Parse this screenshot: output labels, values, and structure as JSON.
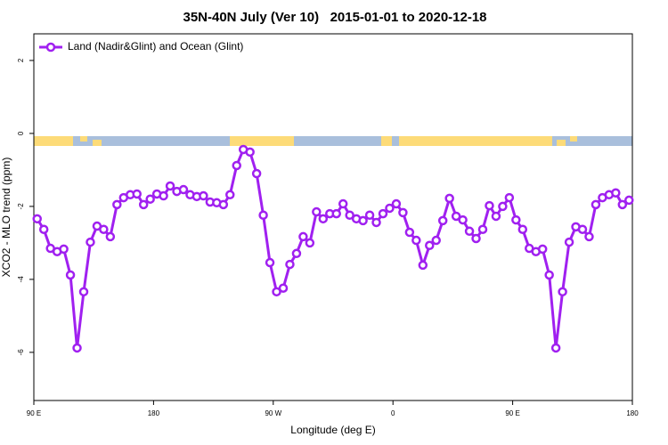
{
  "chart_data": {
    "type": "line",
    "title": "35N-40N July (Ver 10)   2015-01-01 to 2020-12-18",
    "xlabel": "Longitude (deg E)",
    "ylabel": "XCO2 - MLO trend (ppm)",
    "x": [
      92.5,
      97.5,
      102.5,
      107.5,
      112.5,
      117.5,
      122.5,
      127.5,
      132.5,
      137.5,
      142.5,
      147.5,
      152.5,
      157.5,
      162.5,
      167.5,
      172.5,
      177.5,
      182.5,
      187.5,
      192.5,
      197.5,
      202.5,
      207.5,
      212.5,
      217.5,
      222.5,
      227.5,
      232.5,
      237.5,
      242.5,
      247.5,
      252.5,
      257.5,
      262.5,
      267.5,
      272.5,
      277.5,
      282.5,
      287.5,
      292.5,
      297.5,
      302.5,
      307.5,
      312.5,
      317.5,
      322.5,
      327.5,
      332.5,
      337.5,
      342.5,
      347.5,
      352.5,
      357.5,
      362.5,
      367.5,
      372.5,
      377.5,
      382.5,
      387.5,
      392.5,
      397.5,
      402.5,
      407.5,
      412.5,
      417.5,
      422.5,
      427.5,
      432.5,
      437.5,
      442.5,
      447.5,
      452.5,
      457.5,
      462.5,
      467.5,
      472.5,
      477.5,
      482.5,
      487.5,
      492.5,
      497.5,
      502.5,
      507.5,
      512.5,
      517.5,
      522.5,
      527.5,
      532.5,
      537.5
    ],
    "series": [
      {
        "name": "Land (Nadir&Glint) and Ocean (Glint)",
        "color": "#a020f0",
        "values": [
          -2.34,
          -2.63,
          -3.15,
          -3.24,
          -3.17,
          -3.88,
          -5.88,
          -4.34,
          -2.98,
          -2.54,
          -2.63,
          -2.83,
          -1.95,
          -1.76,
          -1.68,
          -1.66,
          -1.95,
          -1.8,
          -1.66,
          -1.71,
          -1.44,
          -1.59,
          -1.54,
          -1.68,
          -1.73,
          -1.71,
          -1.88,
          -1.9,
          -1.95,
          -1.68,
          -0.88,
          -0.44,
          -0.51,
          -1.1,
          -2.24,
          -3.54,
          -4.34,
          -4.24,
          -3.59,
          -3.29,
          -2.83,
          -3.0,
          -2.15,
          -2.34,
          -2.2,
          -2.2,
          -1.93,
          -2.24,
          -2.34,
          -2.39,
          -2.24,
          -2.44,
          -2.2,
          -2.05,
          -1.93,
          -2.17,
          -2.71,
          -2.93,
          -3.61,
          -3.07,
          -2.93,
          -2.39,
          -1.78,
          -2.27,
          -2.37,
          -2.68,
          -2.88,
          -2.63,
          -1.98,
          -2.27,
          -2.0,
          -1.76,
          -2.37,
          -2.63,
          -3.15,
          -3.24,
          -3.17,
          -3.88,
          -5.88,
          -4.34,
          -2.98,
          -2.56,
          -2.63,
          -2.83,
          -1.95,
          -1.76,
          -1.68,
          -1.63,
          -1.95,
          -1.83
        ]
      }
    ],
    "xlim": [
      90,
      540
    ],
    "xticks": [
      {
        "value": 90,
        "label": "90 E"
      },
      180,
      {
        "value": 270,
        "label": "90 W"
      },
      {
        "value": 360,
        "label": "0"
      },
      {
        "value": 450,
        "label": "90 E"
      },
      {
        "value": 540,
        "label": "180"
      }
    ],
    "ylim": [
      -7.32,
      2.73
    ],
    "yticks": [
      2,
      0,
      -2,
      -4,
      -6
    ],
    "legend": "top-left",
    "grid": false
  }
}
